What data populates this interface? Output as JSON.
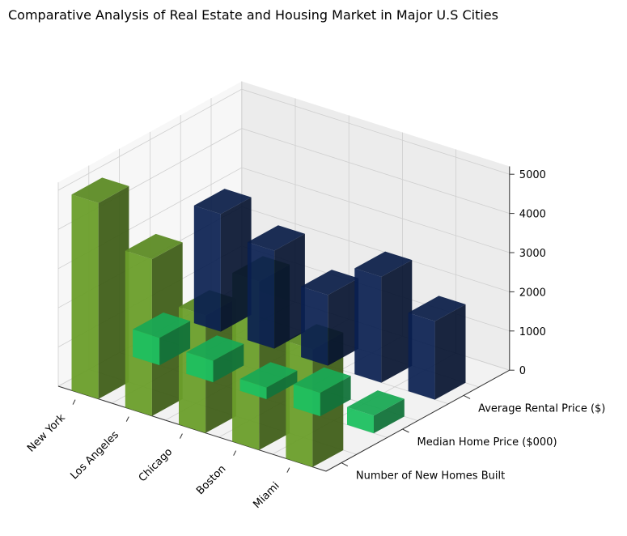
{
  "chart_data": {
    "type": "bar3d",
    "title": "Comparative Analysis of Real Estate and Housing Market in Major U.S Cities",
    "categories": [
      "New York",
      "Los Angeles",
      "Chicago",
      "Boston",
      "Miami"
    ],
    "series": [
      {
        "name": "Average Rental Price ($)",
        "values": [
          3000,
          2500,
          1800,
          2700,
          2000
        ],
        "color": "#0a2050"
      },
      {
        "name": "Median Home Price ($000)",
        "values": [
          700,
          550,
          300,
          600,
          450
        ],
        "color": "#1ec060"
      },
      {
        "name": "Number of New Homes Built",
        "values": [
          5000,
          4000,
          3000,
          4300,
          3000
        ],
        "color": "#6a9e2a"
      }
    ],
    "zlim": [
      0,
      5000
    ],
    "z_ticks": [
      0,
      1000,
      2000,
      3000,
      4000,
      5000
    ],
    "grid": true
  }
}
